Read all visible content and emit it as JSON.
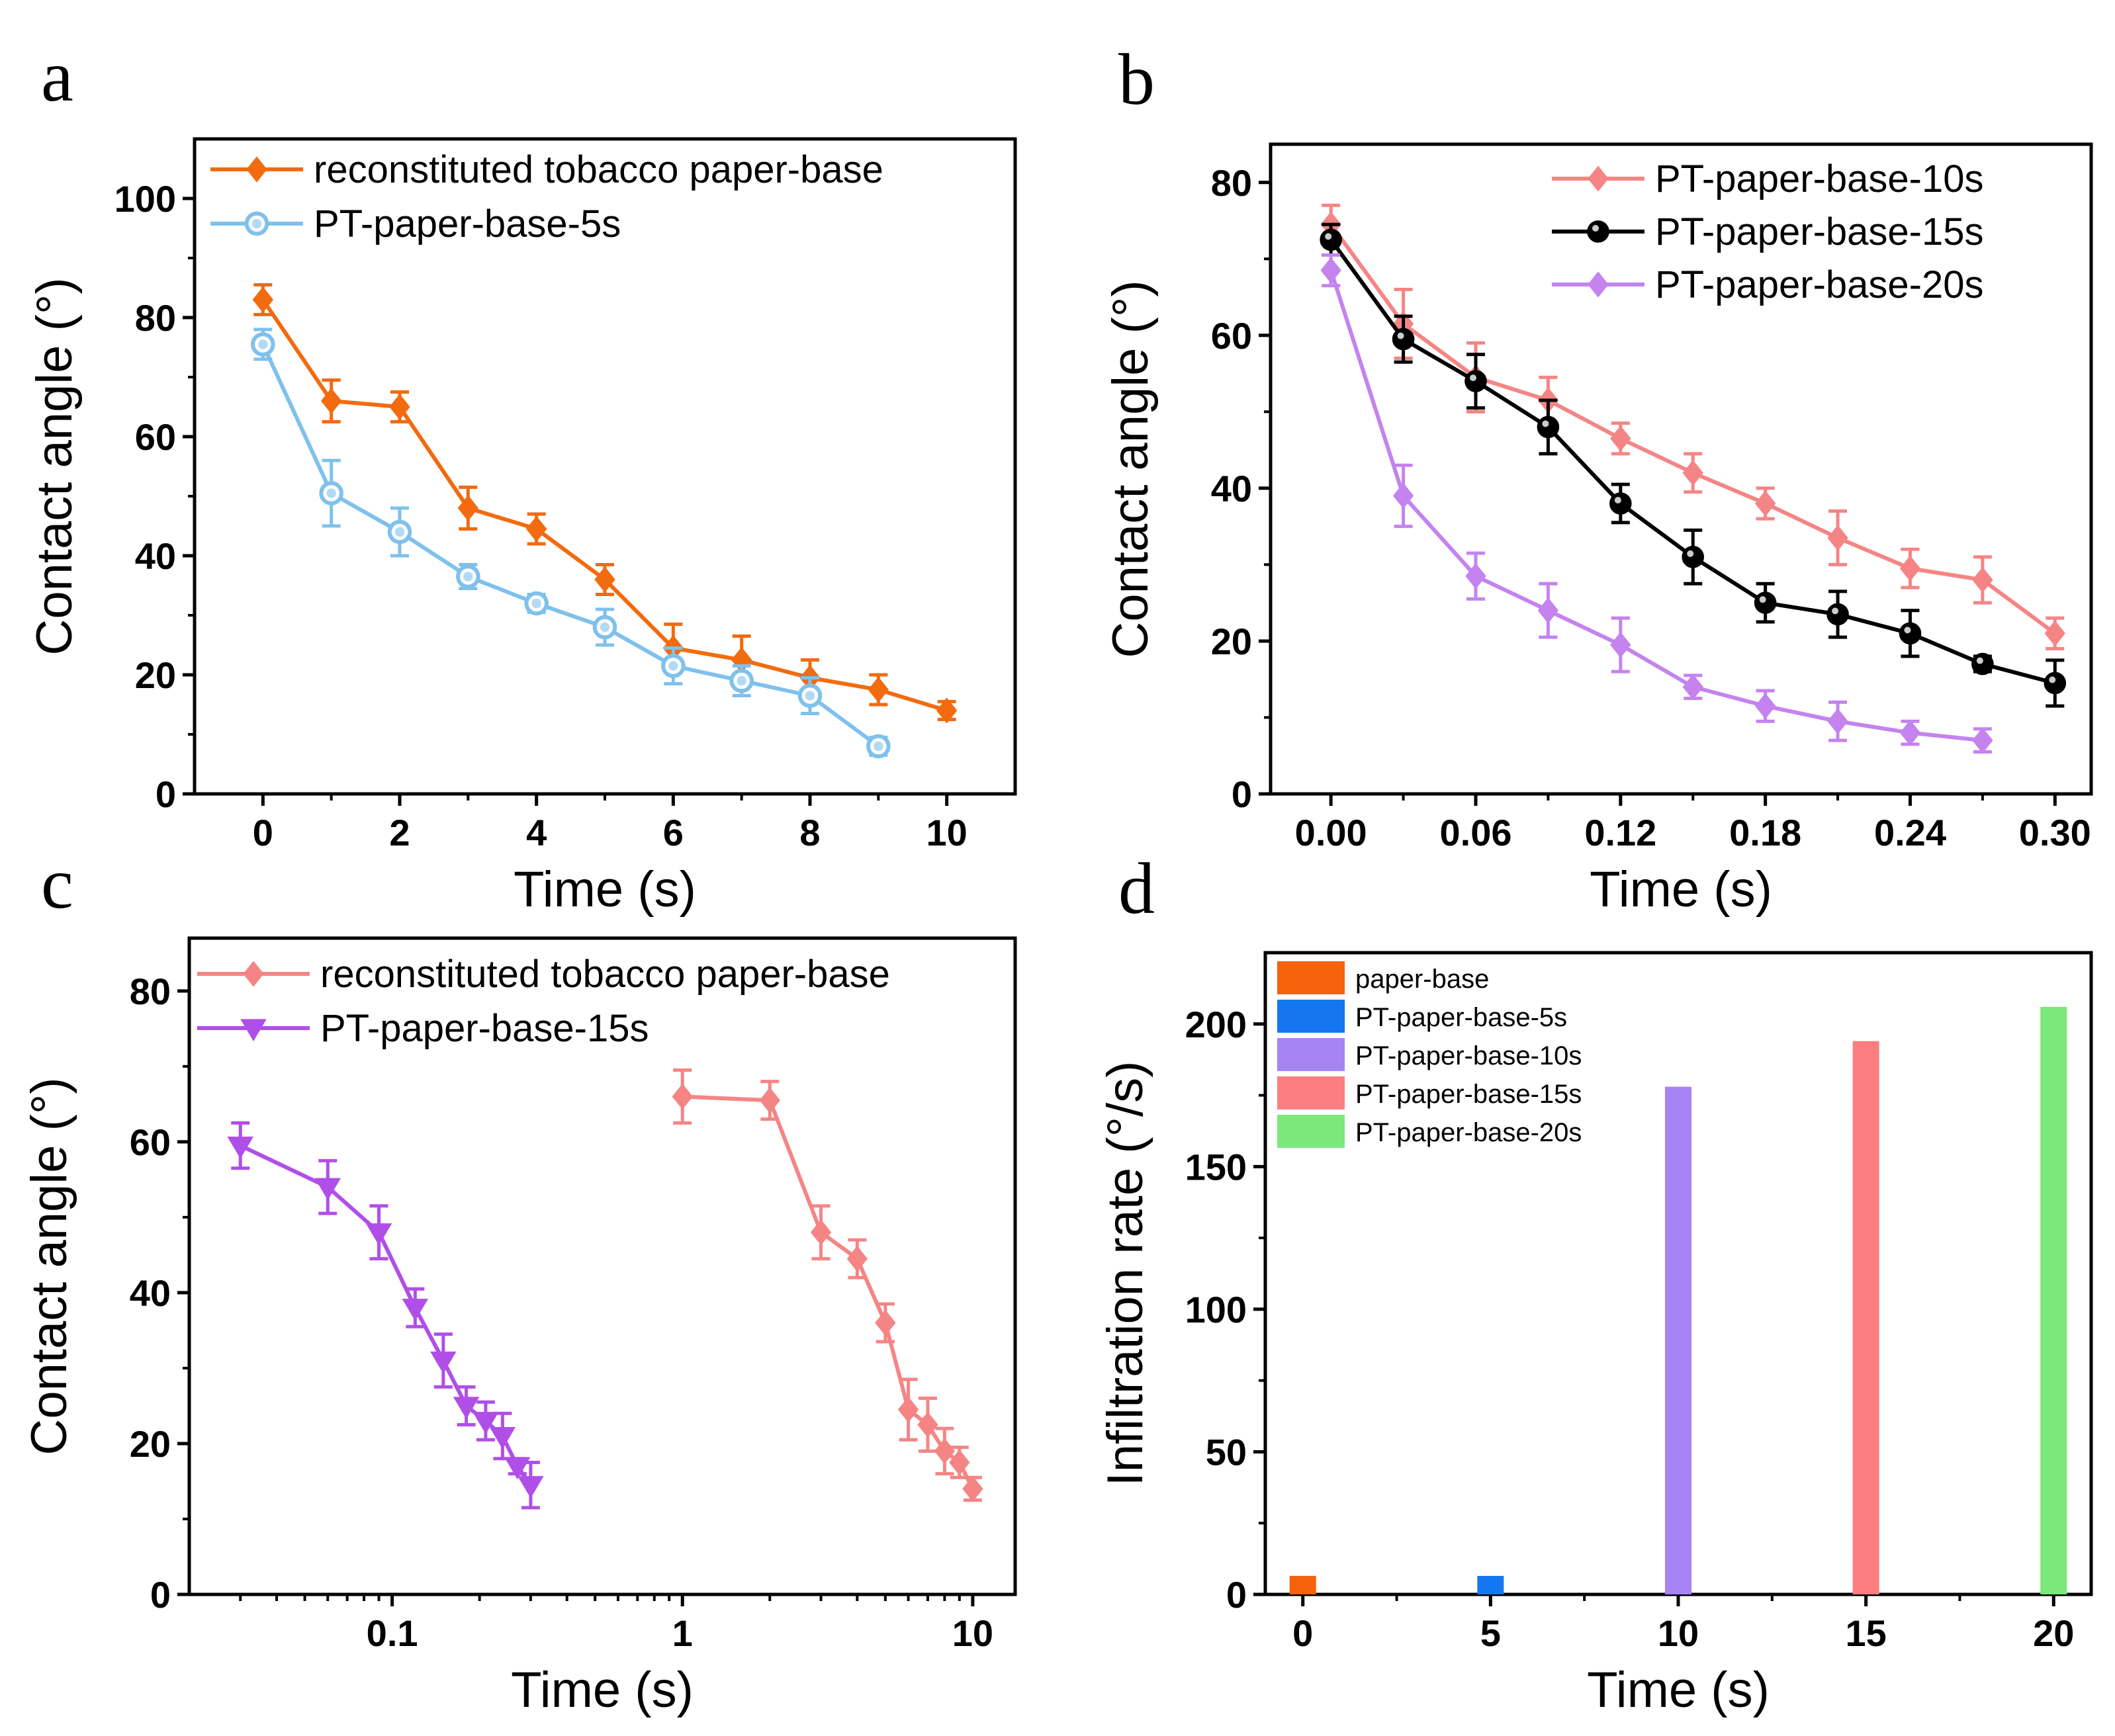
{
  "panels": {
    "a": "a",
    "b": "b",
    "c": "c",
    "d": "d"
  },
  "chart_data": [
    {
      "id": "a",
      "type": "line",
      "xlabel": "Time (s)",
      "ylabel": "Contact angle (°)",
      "xlim": [
        -1,
        11
      ],
      "ylim": [
        0,
        110
      ],
      "xticks": [
        0,
        2,
        4,
        6,
        8,
        10
      ],
      "yticks": [
        0,
        20,
        40,
        60,
        80,
        100
      ],
      "legend_position": "top-left",
      "series": [
        {
          "name": "reconstituted tobacco paper-base",
          "color": "#f26b0f",
          "marker": "diamond",
          "filled": true,
          "x": [
            0,
            1,
            2,
            3,
            4,
            5,
            6,
            7,
            8,
            9,
            10
          ],
          "y": [
            83,
            66,
            65,
            48,
            44.5,
            36,
            24.5,
            22.5,
            19.5,
            17.5,
            14
          ],
          "err": [
            2.5,
            3.5,
            2.5,
            3.5,
            2.5,
            2.5,
            4,
            4,
            3,
            2.5,
            1.5
          ]
        },
        {
          "name": "PT-paper-base-5s",
          "color": "#7fc1ec",
          "marker": "circle",
          "filled": false,
          "x": [
            0,
            1,
            2,
            3,
            4,
            5,
            6,
            7,
            8,
            9
          ],
          "y": [
            75.5,
            50.5,
            44,
            36.5,
            32,
            28,
            21.5,
            19,
            16.5,
            8
          ],
          "err": [
            2.5,
            5.5,
            4,
            2,
            1.5,
            3,
            3,
            2.5,
            3,
            1.5
          ]
        }
      ]
    },
    {
      "id": "b",
      "type": "line",
      "xlabel": "Time (s)",
      "ylabel": "Contact angle (°)",
      "xlim": [
        -0.025,
        0.315
      ],
      "ylim": [
        0,
        85
      ],
      "xticks": [
        0.0,
        0.06,
        0.12,
        0.18,
        0.24,
        0.3
      ],
      "xtick_labels": [
        "0.00",
        "0.06",
        "0.12",
        "0.18",
        "0.24",
        "0.30"
      ],
      "yticks": [
        0,
        20,
        40,
        60,
        80
      ],
      "legend_position": "top-right",
      "series": [
        {
          "name": "PT-paper-base-10s",
          "color": "#f58585",
          "marker": "diamond",
          "filled": true,
          "x": [
            0,
            0.03,
            0.06,
            0.09,
            0.12,
            0.15,
            0.18,
            0.21,
            0.24,
            0.27,
            0.3
          ],
          "y": [
            74.5,
            61.5,
            54.5,
            51.5,
            46.5,
            42,
            38,
            33.5,
            29.5,
            28,
            21
          ],
          "err": [
            2.5,
            4.5,
            4.5,
            3,
            2,
            2.5,
            2,
            3.5,
            2.5,
            3,
            2
          ]
        },
        {
          "name": "PT-paper-base-15s",
          "color": "#000000",
          "marker": "circle",
          "filled": true,
          "x": [
            0,
            0.03,
            0.06,
            0.09,
            0.12,
            0.15,
            0.18,
            0.21,
            0.24,
            0.27,
            0.3
          ],
          "y": [
            72.5,
            59.5,
            54,
            48,
            38,
            31,
            25,
            23.5,
            21,
            17,
            14.5
          ],
          "err": [
            2,
            3,
            3.5,
            3.5,
            2.5,
            3.5,
            2.5,
            3,
            3,
            1,
            3
          ]
        },
        {
          "name": "PT-paper-base-20s",
          "color": "#c483ee",
          "marker": "diamond",
          "filled": true,
          "x": [
            0,
            0.03,
            0.06,
            0.09,
            0.12,
            0.15,
            0.18,
            0.21,
            0.24,
            0.27
          ],
          "y": [
            68.5,
            39,
            28.5,
            24,
            19.5,
            14,
            11.5,
            9.5,
            8,
            7
          ],
          "err": [
            2,
            4,
            3,
            3.5,
            3.5,
            1.5,
            2,
            2.5,
            1.5,
            1.5
          ]
        }
      ]
    },
    {
      "id": "c",
      "type": "line",
      "xscale": "log",
      "xlabel": "Time (s)",
      "ylabel": "Contact angle (°)",
      "xlim": [
        0.02,
        14
      ],
      "ylim": [
        0,
        87
      ],
      "xticks": [
        0.1,
        1,
        10
      ],
      "xtick_labels": [
        "0.1",
        "1",
        "10"
      ],
      "yticks": [
        0,
        20,
        40,
        60,
        80
      ],
      "legend_position": "top-left",
      "series": [
        {
          "name": "reconstituted tobacco paper-base",
          "color": "#f58585",
          "marker": "diamond",
          "filled": true,
          "x": [
            1,
            2,
            3,
            4,
            5,
            6,
            7,
            8,
            9,
            10
          ],
          "y": [
            66,
            65.5,
            48,
            44.5,
            36,
            24.5,
            22.5,
            19,
            17.5,
            14
          ],
          "err": [
            3.5,
            2.5,
            3.5,
            2.5,
            2.5,
            4,
            3.5,
            3,
            2,
            1.5
          ]
        },
        {
          "name": "PT-paper-base-15s",
          "color": "#b04fe8",
          "marker": "triangle-down",
          "filled": true,
          "x": [
            0.03,
            0.06,
            0.09,
            0.12,
            0.15,
            0.18,
            0.21,
            0.24,
            0.27,
            0.3
          ],
          "y": [
            59.5,
            54,
            48,
            38,
            31,
            25,
            23,
            21,
            17,
            14.5
          ],
          "err": [
            3,
            3.5,
            3.5,
            2.5,
            3.5,
            2.5,
            2.5,
            3,
            1,
            3
          ]
        }
      ]
    },
    {
      "id": "d",
      "type": "bar",
      "xlabel": "Time (s)",
      "ylabel": "Infiltration rate (°/s)",
      "xlim": [
        -1,
        21
      ],
      "ylim": [
        0,
        225
      ],
      "xticks": [
        0,
        5,
        10,
        15,
        20
      ],
      "yticks": [
        0,
        50,
        100,
        150,
        200
      ],
      "legend_position": "top-left",
      "series": [
        {
          "name": "paper-base",
          "color": "#f7620d",
          "x": 0,
          "value": 6.5
        },
        {
          "name": "PT-paper-base-5s",
          "color": "#1577ef",
          "x": 5,
          "value": 6.5
        },
        {
          "name": "PT-paper-base-10s",
          "color": "#a784f6",
          "x": 10,
          "value": 178
        },
        {
          "name": "PT-paper-base-15s",
          "color": "#fd7e81",
          "x": 15,
          "value": 194
        },
        {
          "name": "PT-paper-base-20s",
          "color": "#7be87b",
          "x": 20,
          "value": 206
        }
      ]
    }
  ]
}
